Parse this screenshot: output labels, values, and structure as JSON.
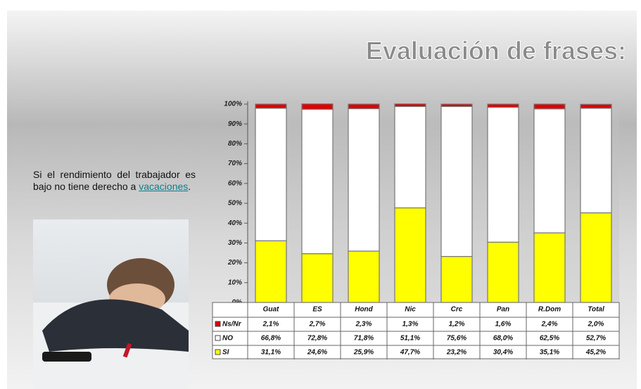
{
  "chart_data": {
    "type": "stacked_bar",
    "title": "Evaluación de frases:",
    "caption_before": "Si el rendimiento del trabajador es bajo no tiene derecho a ",
    "caption_link": "vacaciones",
    "caption_after": ".",
    "categories": [
      "Guat",
      "ES",
      "Hond",
      "Nic",
      "Crc",
      "Pan",
      "R.Dom",
      "Total"
    ],
    "series": [
      {
        "name": "SI",
        "color": "#ffff00",
        "values": [
          31.1,
          24.6,
          25.9,
          47.7,
          23.2,
          30.4,
          35.1,
          45.2
        ],
        "value_labels": [
          "31,1%",
          "24,6%",
          "25,9%",
          "47,7%",
          "23,2%",
          "30,4%",
          "35,1%",
          "45,2%"
        ]
      },
      {
        "name": "NO",
        "color": "#ffffff",
        "values": [
          66.8,
          72.8,
          71.8,
          51.1,
          75.6,
          68.0,
          62.5,
          52.7
        ],
        "value_labels": [
          "66,8%",
          "72,8%",
          "71,8%",
          "51,1%",
          "75,6%",
          "68,0%",
          "62,5%",
          "52,7%"
        ]
      },
      {
        "name": "Ns/Nr",
        "color": "#e00000",
        "values": [
          2.1,
          2.7,
          2.3,
          1.3,
          1.2,
          1.6,
          2.4,
          2.0
        ],
        "value_labels": [
          "2,1%",
          "2,7%",
          "2,3%",
          "1,3%",
          "1,2%",
          "1,6%",
          "2,4%",
          "2,0%"
        ]
      }
    ],
    "ylim": [
      0,
      100
    ],
    "yticks": [
      {
        "value": 0,
        "label": "0%"
      },
      {
        "value": 10,
        "label": "10%"
      },
      {
        "value": 20,
        "label": "20%"
      },
      {
        "value": 30,
        "label": "30%"
      },
      {
        "value": 40,
        "label": "40%"
      },
      {
        "value": 50,
        "label": "50%"
      },
      {
        "value": 60,
        "label": "60%"
      },
      {
        "value": 70,
        "label": "70%"
      },
      {
        "value": 80,
        "label": "80%"
      },
      {
        "value": 90,
        "label": "90%"
      },
      {
        "value": 100,
        "label": "100%"
      }
    ]
  }
}
